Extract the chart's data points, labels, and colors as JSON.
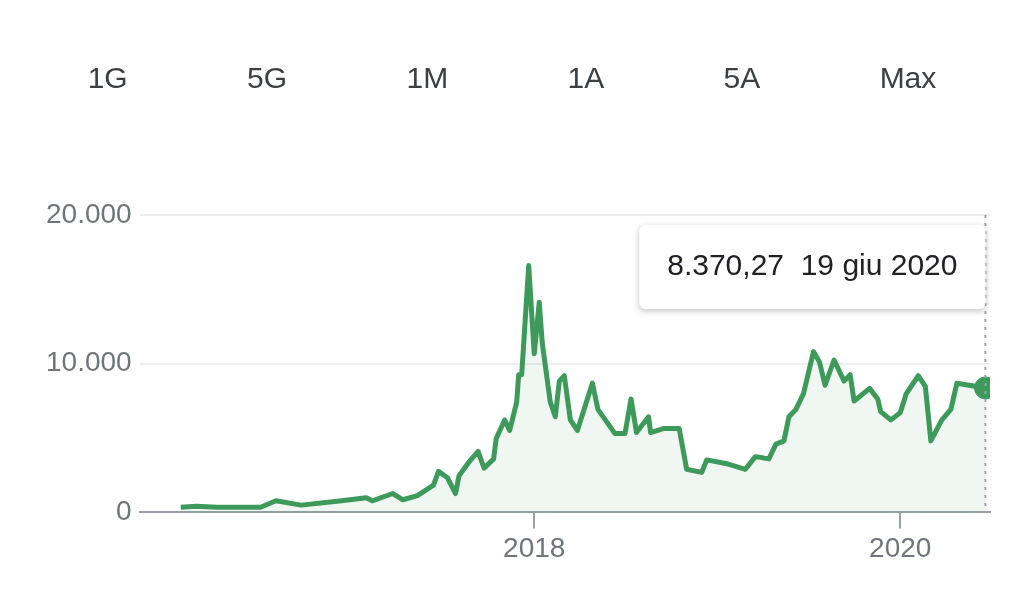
{
  "chart_data": {
    "type": "area",
    "annotations": [
      "1G",
      "5G",
      "1M",
      "1A",
      "5A",
      "Max",
      "8.370,27  19 giu 2020"
    ],
    "series": [
      {
        "color": "#3d9a5a",
        "x": [
          "2016-01-27",
          "2016-02-27",
          "2016-04-08",
          "2016-07-04",
          "2016-08-04",
          "2016-09-23",
          "2016-12-13",
          "2017-01-31",
          "2017-02-12",
          "2017-03-25",
          "2017-04-14",
          "2017-05-13",
          "2017-06-14",
          "2017-06-24",
          "2017-07-12",
          "2017-07-28",
          "2017-08-04",
          "2017-08-24",
          "2017-09-11",
          "2017-09-23",
          "2017-10-12",
          "2017-10-17",
          "2017-11-03",
          "2017-11-13",
          "2017-11-27",
          "2017-12-01",
          "2017-12-07",
          "2017-12-21",
          "2018-01-01",
          "2018-01-11",
          "2018-01-17",
          "2018-02-02",
          "2018-02-12",
          "2018-02-20",
          "2018-03-02",
          "2018-03-14",
          "2018-03-28",
          "2018-04-27",
          "2018-05-08",
          "2018-06-11",
          "2018-07-01",
          "2018-07-13",
          "2018-07-24",
          "2018-08-17",
          "2018-08-21",
          "2018-09-17",
          "2018-10-17",
          "2018-11-01",
          "2018-12-01",
          "2018-12-11",
          "2019-01-23",
          "2019-02-26",
          "2019-03-18",
          "2019-04-14",
          "2019-04-28",
          "2019-05-14",
          "2019-05-24",
          "2019-06-07",
          "2019-06-22",
          "2019-07-12",
          "2019-07-24",
          "2019-08-04",
          "2019-08-22",
          "2019-09-11",
          "2019-09-23",
          "2019-10-01",
          "2019-11-01",
          "2019-11-17",
          "2019-11-23",
          "2019-12-13",
          "2020-01-01",
          "2020-01-13",
          "2020-02-06",
          "2020-02-20",
          "2020-03-02",
          "2020-03-24",
          "2020-04-11",
          "2020-04-23",
          "2020-06-19"
        ],
        "values": [
          350,
          420,
          350,
          350,
          780,
          490,
          780,
          990,
          780,
          1270,
          850,
          1130,
          1840,
          2760,
          2330,
          1270,
          2470,
          3390,
          4100,
          2970,
          3600,
          4950,
          6220,
          5510,
          7420,
          9260,
          9260,
          16600,
          10670,
          14130,
          11380,
          7420,
          6430,
          8830,
          9190,
          6220,
          5510,
          8690,
          6930,
          5300,
          5300,
          7630,
          5370,
          6430,
          5370,
          5650,
          5650,
          2900,
          2690,
          3530,
          3250,
          2900,
          3750,
          3600,
          4590,
          4810,
          6430,
          6930,
          7990,
          10810,
          10110,
          8550,
          10250,
          8830,
          9260,
          7490,
          8340,
          7630,
          6780,
          6220,
          6710,
          7990,
          9190,
          8480,
          4810,
          6220,
          6930,
          8690,
          8370
        ]
      },
      {
        "type": "scatter",
        "color": "#3d9a5a",
        "x": [
          "2020-06-19"
        ],
        "values": [
          8370
        ]
      }
    ],
    "xlim": [
      "2015-11-06",
      "2020-06-28"
    ],
    "xticks": [
      {
        "value": "2018",
        "label": "2018"
      },
      {
        "value": "2020",
        "label": "2020"
      }
    ],
    "ylim": [
      0,
      20000
    ],
    "yticks": [
      {
        "value": 0,
        "label": "0"
      },
      {
        "value": 10000,
        "label": "10.000"
      },
      {
        "value": 20000,
        "label": "20.000"
      }
    ],
    "ref_lines": [
      {
        "axis": "x",
        "value": "2020-06-19",
        "color": "#9aa0a6",
        "line_style": "dotted"
      }
    ],
    "grid": "y",
    "legend": false
  }
}
